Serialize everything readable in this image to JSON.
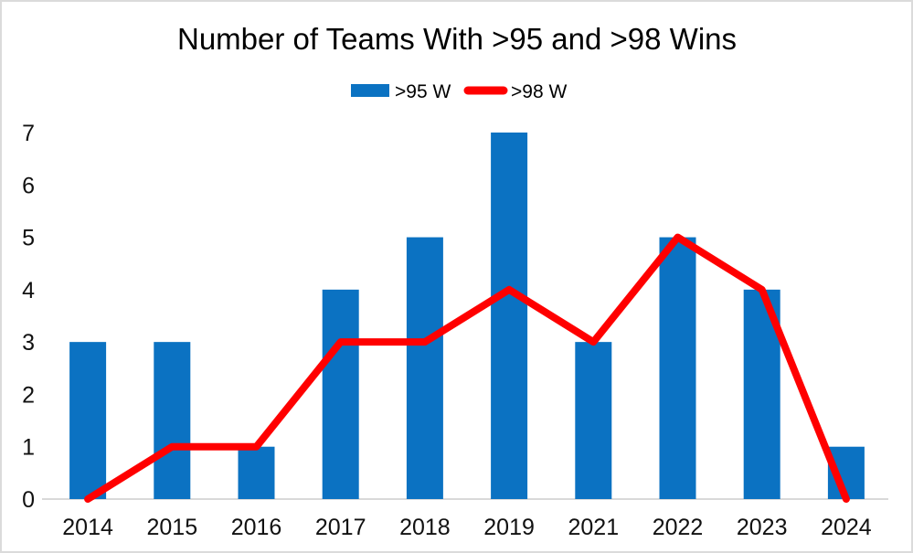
{
  "chart_data": {
    "type": "combo",
    "title": "Number of Teams With >95 and >98 Wins",
    "categories": [
      "2014",
      "2015",
      "2016",
      "2017",
      "2018",
      "2019",
      "2021",
      "2022",
      "2023",
      "2024"
    ],
    "series": [
      {
        "name": ">95 W",
        "type": "bar",
        "color": "#0B72C2",
        "values": [
          3,
          3,
          1,
          4,
          5,
          7,
          3,
          5,
          4,
          1
        ]
      },
      {
        "name": ">98 W",
        "type": "line",
        "color": "#FF0000",
        "values": [
          0,
          1,
          1,
          3,
          3,
          4,
          3,
          5,
          4,
          0
        ]
      }
    ],
    "xlabel": "",
    "ylabel": "",
    "ylim": [
      0,
      7
    ],
    "y_ticks": [
      0,
      1,
      2,
      3,
      4,
      5,
      6,
      7
    ],
    "grid": false,
    "legend_position": "top-center",
    "axis_color": "#D9D9D9",
    "text_color": "#000000"
  }
}
